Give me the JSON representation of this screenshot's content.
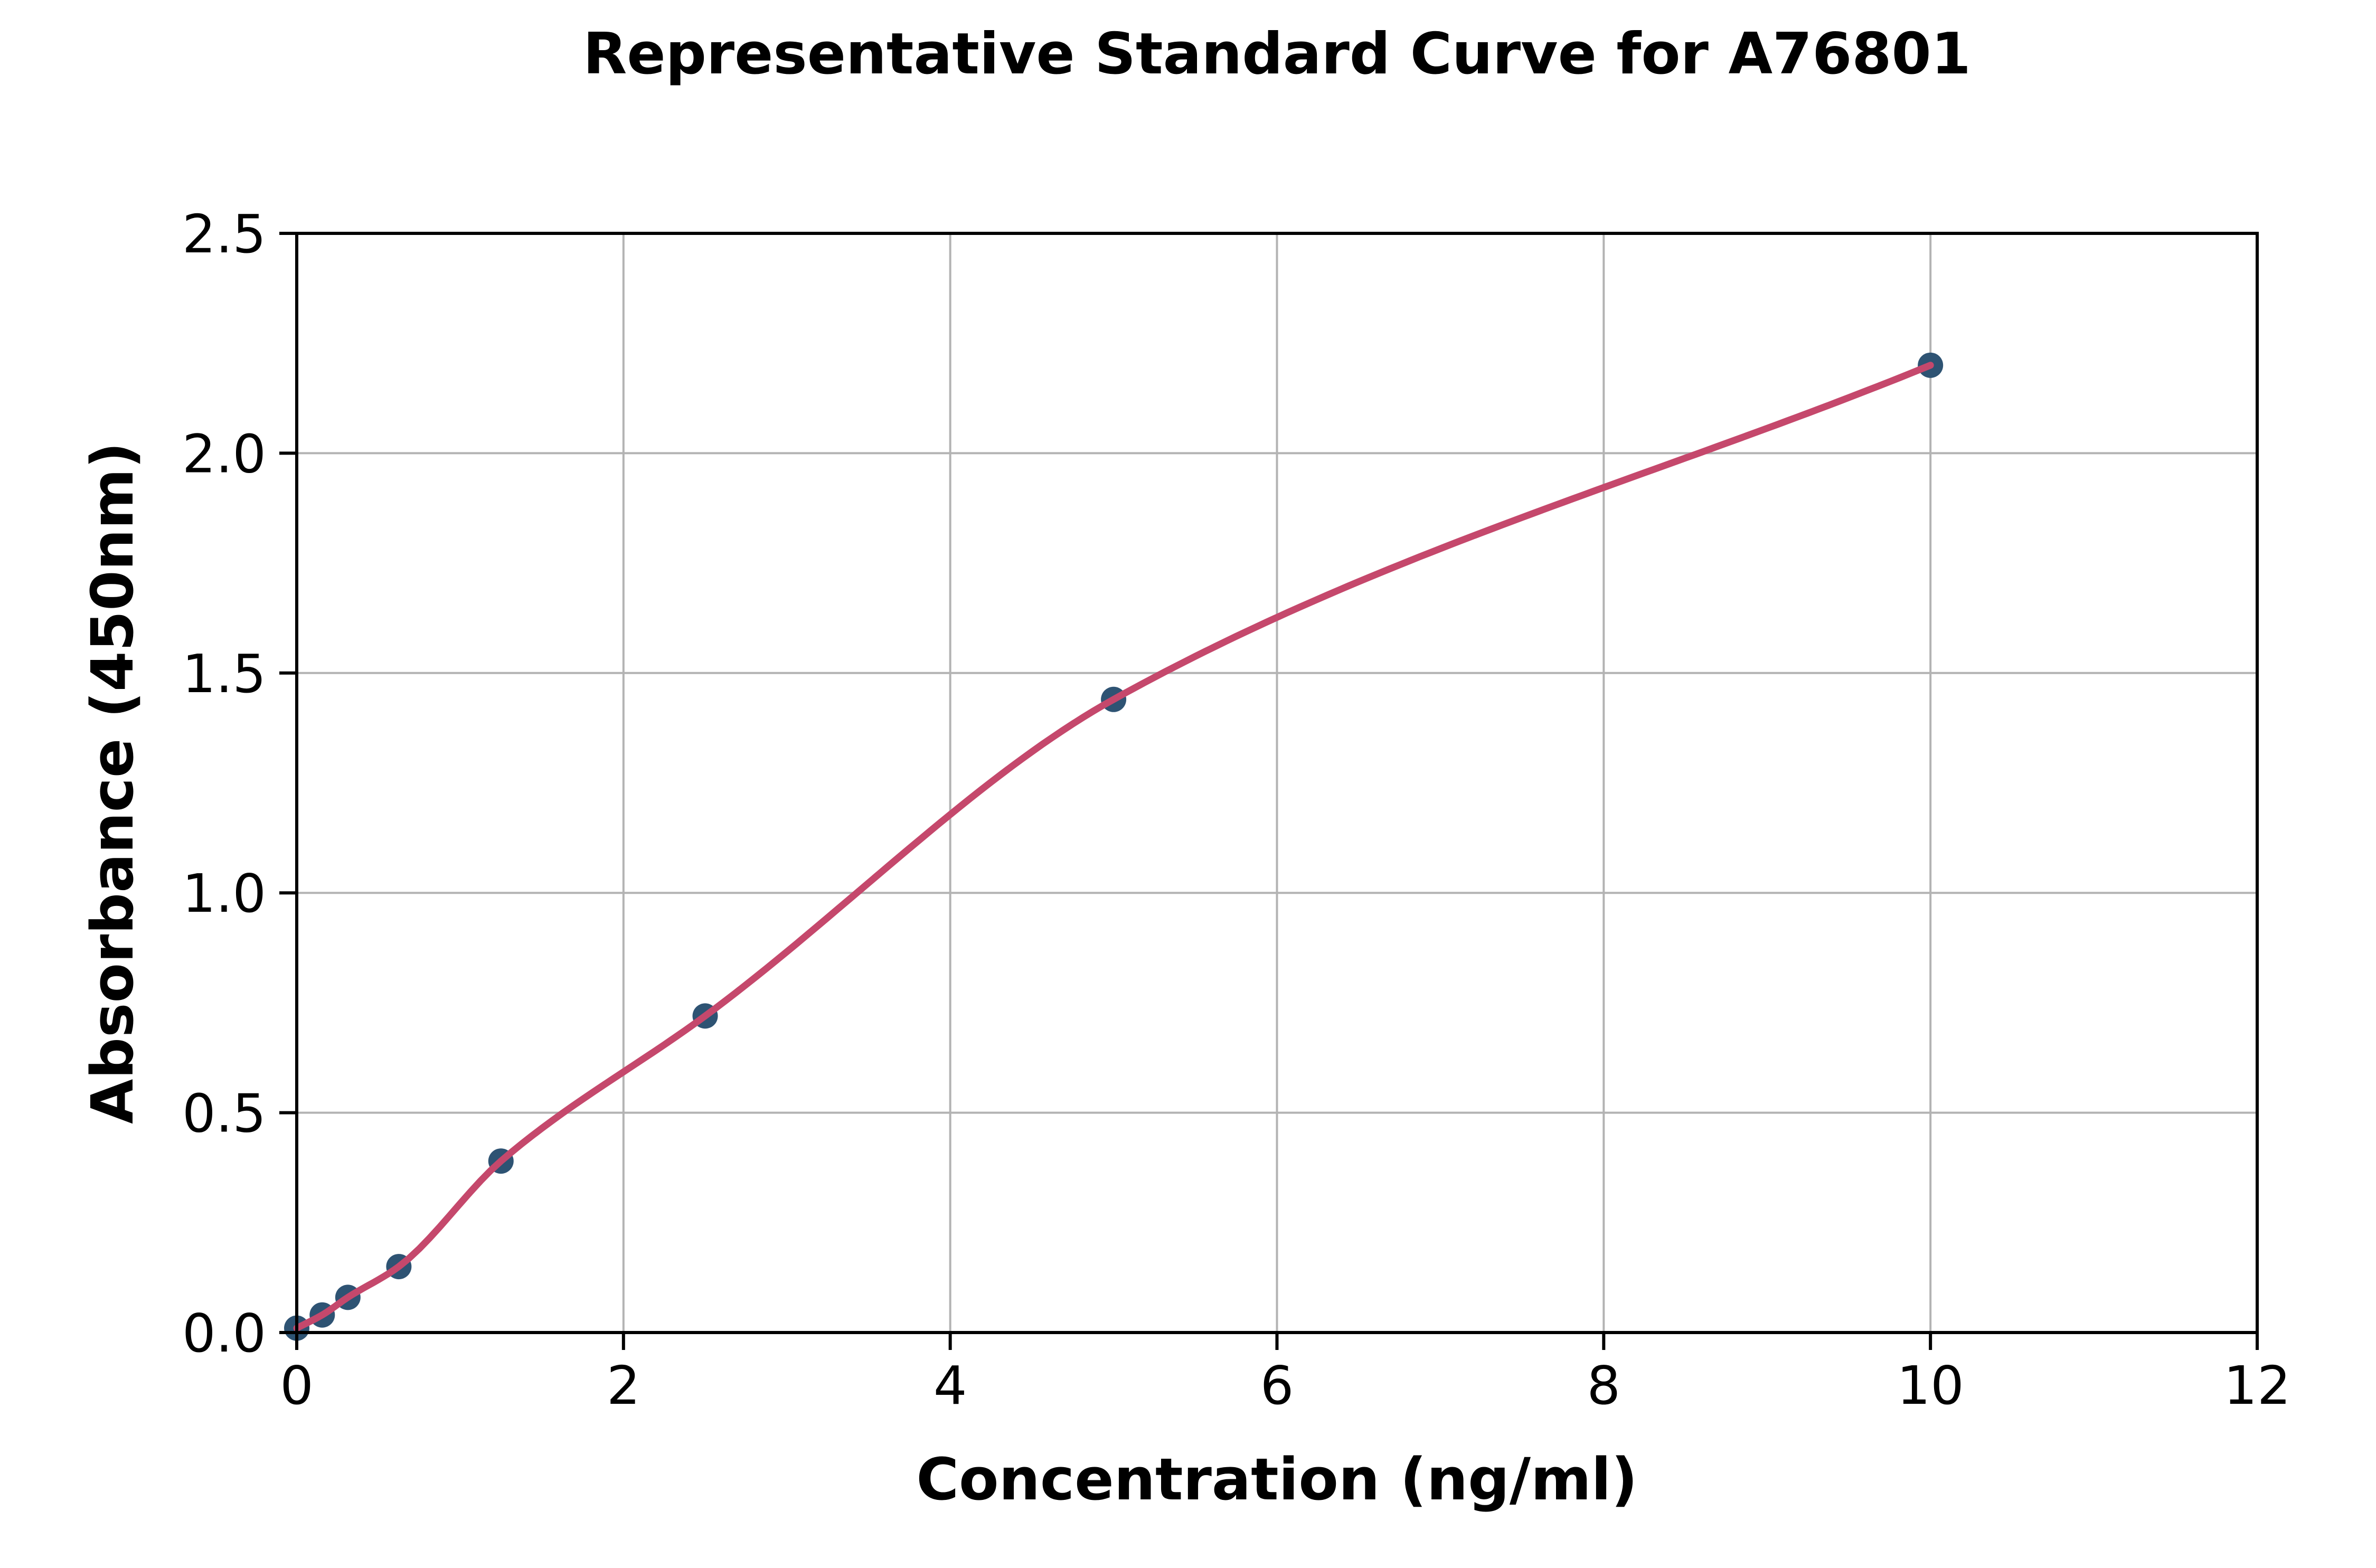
{
  "chart_data": {
    "type": "scatter",
    "title": "Representative Standard Curve for A76801",
    "xlabel": "Concentration (ng/ml)",
    "ylabel": "Absorbance (450nm)",
    "xlim": [
      0,
      12
    ],
    "ylim": [
      0,
      2.5
    ],
    "grid": true,
    "legend": "none",
    "x_ticks": {
      "values": [
        0,
        2,
        4,
        6,
        8,
        10,
        12
      ],
      "labels": [
        "0",
        "2",
        "4",
        "6",
        "8",
        "10",
        "12"
      ]
    },
    "y_ticks": {
      "values": [
        0,
        0.5,
        1.0,
        1.5,
        2.0,
        2.5
      ],
      "labels": [
        "0.0",
        "0.5",
        "1.0",
        "1.5",
        "2.0",
        "2.5"
      ]
    },
    "series": [
      {
        "name": "standard-points",
        "type": "scatter",
        "x": [
          0,
          0.156,
          0.313,
          0.625,
          1.25,
          2.5,
          5,
          10
        ],
        "y": [
          0.01,
          0.04,
          0.08,
          0.15,
          0.39,
          0.72,
          1.44,
          2.2
        ]
      },
      {
        "name": "fit-curve",
        "type": "line",
        "through": "standard-points",
        "x_range": [
          0,
          10
        ]
      }
    ],
    "colors": {
      "point": "#2e5373",
      "curve": "#c5486c",
      "grid": "#b3b3b3",
      "axis": "#000000",
      "background": "#ffffff"
    }
  }
}
